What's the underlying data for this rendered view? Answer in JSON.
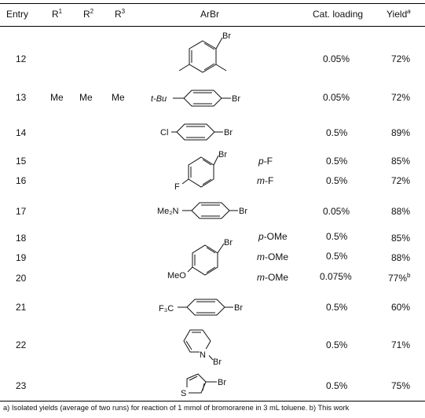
{
  "headers": {
    "entry": "Entry",
    "r1": "R",
    "r1_sup": "1",
    "r2": "R",
    "r2_sup": "2",
    "r3": "R",
    "r3_sup": "3",
    "arbr": "ArBr",
    "cat": "Cat. loading",
    "yield": "Yield",
    "yield_sup": "a"
  },
  "rows": [
    {
      "entry": "12",
      "r1": "",
      "r2": "",
      "r3": "",
      "sub": "",
      "cat": "0.05%",
      "yield": "72%"
    },
    {
      "entry": "13",
      "r1": "Me",
      "r2": "Me",
      "r3": "Me",
      "sub": "",
      "cat": "0.05%",
      "yield": "72%"
    },
    {
      "entry": "14",
      "r1": "",
      "r2": "",
      "r3": "",
      "sub": "",
      "cat": "0.5%",
      "yield": "89%"
    },
    {
      "entry": "15",
      "r1": "",
      "r2": "",
      "r3": "",
      "sub": "p-F",
      "cat": "0.5%",
      "yield": "85%"
    },
    {
      "entry": "16",
      "r1": "",
      "r2": "",
      "r3": "",
      "sub": "m-F",
      "cat": "0.5%",
      "yield": "72%"
    },
    {
      "entry": "17",
      "r1": "",
      "r2": "",
      "r3": "",
      "sub": "",
      "cat": "0.05%",
      "yield": "88%"
    },
    {
      "entry": "18",
      "r1": "",
      "r2": "",
      "r3": "",
      "sub": "p-OMe",
      "cat": "0.5%",
      "yield": "85%"
    },
    {
      "entry": "19",
      "r1": "",
      "r2": "",
      "r3": "",
      "sub": "m-OMe",
      "cat": "0.5%",
      "yield": "88%"
    },
    {
      "entry": "20",
      "r1": "",
      "r2": "",
      "r3": "",
      "sub": "m-OMe",
      "cat": "0.075%",
      "yield": "77%",
      "yield_sup": "b"
    },
    {
      "entry": "21",
      "r1": "",
      "r2": "",
      "r3": "",
      "sub": "",
      "cat": "0.5%",
      "yield": "60%"
    },
    {
      "entry": "22",
      "r1": "",
      "r2": "",
      "r3": "",
      "sub": "",
      "cat": "0.5%",
      "yield": "71%"
    },
    {
      "entry": "23",
      "r1": "",
      "r2": "",
      "r3": "",
      "sub": "",
      "cat": "0.5%",
      "yield": "75%"
    }
  ],
  "structure_labels": {
    "br": "Br",
    "tbu": "t-Bu",
    "cl": "Cl",
    "f": "F",
    "me2n": "Me₂N",
    "meo": "MeO",
    "f3c": "F₃C",
    "n": "N",
    "s": "S"
  },
  "footnote": "a) Isolated yields (average of two runs) for reaction of 1 mmol of bromorarene in 3 mL toluene. b) This work"
}
